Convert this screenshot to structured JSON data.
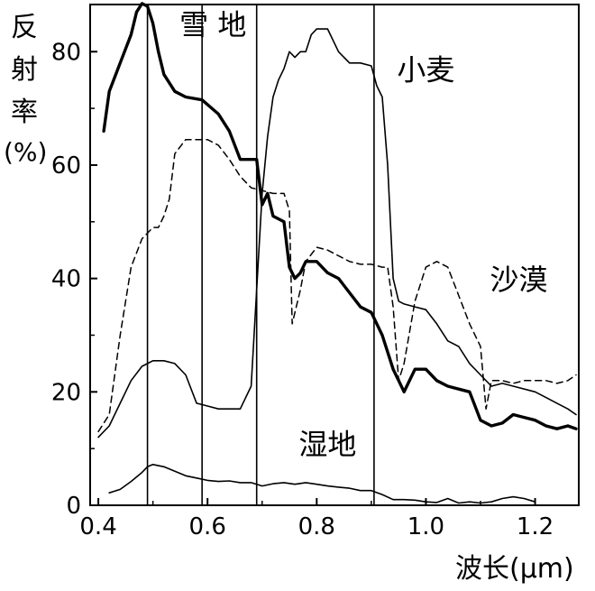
{
  "chart_data": {
    "type": "line",
    "ylabel_lines": [
      "反",
      "射",
      "率",
      "(%)"
    ],
    "xlabel": "波长(μm)",
    "xlim": [
      0.385,
      1.28
    ],
    "ylim": [
      0,
      88
    ],
    "x_ticks": [
      0.4,
      0.6,
      0.8,
      1.0,
      1.2
    ],
    "x_tick_labels": [
      "0.4",
      "0.6",
      "0.8",
      "1.0",
      "1.2"
    ],
    "y_ticks": [
      0,
      20,
      40,
      60,
      80
    ],
    "y_tick_labels": [
      "0",
      "20",
      "40",
      "60",
      "80"
    ],
    "vertical_lines_x": [
      0.49,
      0.59,
      0.69,
      0.905
    ],
    "grid": false,
    "series": [
      {
        "name": "雪地",
        "style": "thick",
        "x": [
          0.41,
          0.42,
          0.44,
          0.46,
          0.47,
          0.48,
          0.49,
          0.5,
          0.51,
          0.52,
          0.54,
          0.56,
          0.59,
          0.62,
          0.64,
          0.66,
          0.68,
          0.69,
          0.7,
          0.71,
          0.72,
          0.74,
          0.75,
          0.76,
          0.77,
          0.78,
          0.8,
          0.82,
          0.84,
          0.88,
          0.9,
          0.92,
          0.94,
          0.95,
          0.96,
          0.98,
          1.0,
          1.02,
          1.04,
          1.06,
          1.08,
          1.1,
          1.12,
          1.14,
          1.16,
          1.18,
          1.2,
          1.22,
          1.24,
          1.26,
          1.275
        ],
        "y": [
          66,
          73,
          78,
          83,
          87,
          88.5,
          88,
          85,
          80,
          76,
          73,
          72,
          71.5,
          69,
          66,
          61,
          61,
          61,
          53,
          55,
          51,
          50,
          42,
          40,
          41,
          43,
          43,
          41,
          40,
          35,
          34,
          30,
          24,
          22,
          20,
          24,
          24,
          22,
          21,
          20.5,
          20,
          15,
          14,
          14.5,
          16,
          15.5,
          15,
          14,
          13.5,
          14,
          13.5
        ]
      },
      {
        "name": "小麦",
        "style": "thin",
        "x": [
          0.4,
          0.42,
          0.44,
          0.46,
          0.48,
          0.5,
          0.52,
          0.54,
          0.56,
          0.58,
          0.6,
          0.62,
          0.64,
          0.66,
          0.68,
          0.69,
          0.7,
          0.71,
          0.72,
          0.73,
          0.74,
          0.75,
          0.76,
          0.77,
          0.78,
          0.79,
          0.8,
          0.82,
          0.84,
          0.86,
          0.88,
          0.9,
          0.91,
          0.92,
          0.93,
          0.94,
          0.95,
          0.96,
          0.98,
          1.0,
          1.02,
          1.04,
          1.06,
          1.08,
          1.1,
          1.12,
          1.14,
          1.16,
          1.2,
          1.22,
          1.24,
          1.26,
          1.275
        ],
        "y": [
          12,
          14,
          18,
          22,
          24.5,
          25.5,
          25.5,
          25,
          23,
          18,
          17.5,
          17,
          17,
          17,
          21,
          38,
          55,
          65,
          72,
          75,
          77,
          80,
          79,
          80,
          80,
          83,
          84,
          84,
          80,
          78,
          78,
          77.5,
          74,
          72,
          60,
          40,
          36,
          35.5,
          35,
          34.5,
          32,
          29,
          28,
          25,
          23,
          21,
          21.5,
          21,
          20,
          19,
          18,
          17,
          16
        ]
      },
      {
        "name": "沙漠",
        "style": "dashed",
        "x": [
          0.4,
          0.42,
          0.44,
          0.46,
          0.48,
          0.49,
          0.5,
          0.51,
          0.52,
          0.53,
          0.54,
          0.56,
          0.58,
          0.6,
          0.62,
          0.64,
          0.66,
          0.68,
          0.7,
          0.72,
          0.74,
          0.75,
          0.755,
          0.77,
          0.78,
          0.8,
          0.82,
          0.84,
          0.86,
          0.88,
          0.9,
          0.92,
          0.93,
          0.94,
          0.95,
          0.96,
          0.98,
          1.0,
          1.02,
          1.04,
          1.06,
          1.08,
          1.1,
          1.11,
          1.12,
          1.14,
          1.16,
          1.18,
          1.2,
          1.22,
          1.24,
          1.26,
          1.275
        ],
        "y": [
          13,
          16,
          30,
          42,
          47,
          48,
          49,
          49,
          51,
          54,
          62,
          64.5,
          64.5,
          64.5,
          63.5,
          61,
          58,
          56,
          55.5,
          55,
          55,
          52,
          32,
          38,
          43,
          45.5,
          45,
          44,
          43,
          42.5,
          42.5,
          42,
          42,
          35,
          22,
          25,
          36,
          42,
          43,
          42,
          37,
          32,
          28,
          17,
          22,
          22,
          21.5,
          22,
          22,
          22,
          21.5,
          22,
          23
        ]
      },
      {
        "name": "湿地",
        "style": "thin",
        "x": [
          0.42,
          0.44,
          0.46,
          0.48,
          0.49,
          0.5,
          0.52,
          0.54,
          0.56,
          0.58,
          0.6,
          0.62,
          0.64,
          0.66,
          0.68,
          0.7,
          0.72,
          0.74,
          0.76,
          0.78,
          0.8,
          0.82,
          0.84,
          0.86,
          0.88,
          0.9,
          0.92,
          0.94,
          0.96,
          0.98,
          1.0,
          1.02,
          1.04,
          1.06,
          1.08,
          1.1,
          1.12,
          1.14,
          1.16,
          1.18,
          1.2
        ],
        "y": [
          2.2,
          2.8,
          4.2,
          5.8,
          6.8,
          7.2,
          6.8,
          6.0,
          5.2,
          4.8,
          4.4,
          4.2,
          4.3,
          4.0,
          4.0,
          3.4,
          3.8,
          4.0,
          3.7,
          4.0,
          3.7,
          3.4,
          3.2,
          3.0,
          2.6,
          2.6,
          1.9,
          1.0,
          1.0,
          0.9,
          0.6,
          0.5,
          1.2,
          0.4,
          0.6,
          0.4,
          0.6,
          1.2,
          1.5,
          1.2,
          0.6
        ]
      }
    ],
    "annotations": [
      {
        "text": "雪 地",
        "x": 0.61,
        "y": 83
      },
      {
        "text": "小麦",
        "x": 1.0,
        "y": 75
      },
      {
        "text": "沙漠",
        "x": 1.17,
        "y": 38
      },
      {
        "text": "湿地",
        "x": 0.82,
        "y": 9
      }
    ]
  }
}
